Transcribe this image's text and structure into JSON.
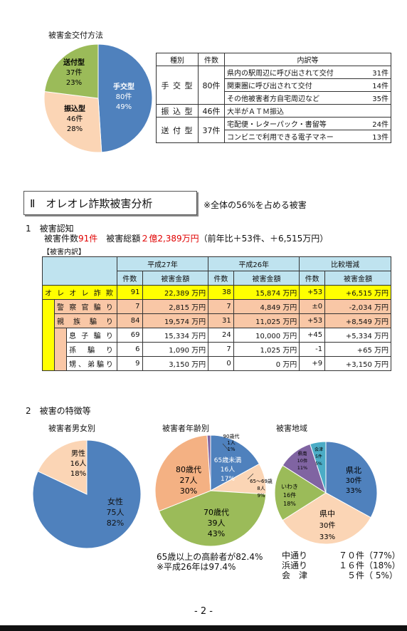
{
  "payment": {
    "title": "被害金交付方法",
    "pie": [
      {
        "name": "手交型",
        "count": "80件",
        "pct": "49%",
        "value": 49,
        "color": "#4f81bd"
      },
      {
        "name": "振込型",
        "count": "46件",
        "pct": "28%",
        "value": 28,
        "color": "#fbd5b5"
      },
      {
        "name": "送付型",
        "count": "37件",
        "pct": "23%",
        "value": 23,
        "color": "#9bbb59"
      }
    ],
    "table": {
      "headers": [
        "種別",
        "件数",
        "内訳等"
      ],
      "rows": [
        {
          "type": "手 交 型",
          "count": "80件",
          "details": [
            {
              "text": "県内の駅周辺に呼び出されて交付",
              "num": "31件"
            },
            {
              "text": "関東圏に呼び出されて交付",
              "num": "14件"
            },
            {
              "text": "その他被害者方自宅周辺など",
              "num": "35件"
            }
          ]
        },
        {
          "type": "振 込 型",
          "count": "46件",
          "details": [
            {
              "text": "大半がＡＴＭ振込",
              "num": ""
            }
          ]
        },
        {
          "type": "送 付 型",
          "count": "37件",
          "details": [
            {
              "text": "宅配便・レターパック・書留等",
              "num": "24件"
            },
            {
              "text": "コンビニで利用できる電子マネー",
              "num": "13件"
            }
          ]
        }
      ]
    }
  },
  "section2": {
    "title": "Ⅱ　オレオレ詐欺被害分析",
    "note": "※全体の56%を占める被害",
    "sub1": "1　被害認知",
    "summary_prefix": "被害件数",
    "summary_count": "91件",
    "summary_mid": "　被害総額",
    "summary_amount": "２億2,389万円",
    "summary_suffix": "（前年比＋53件、＋6,515万円）",
    "breakdown_label": "【被害内訳】",
    "table": {
      "years": [
        "平成27年",
        "平成26年",
        "比較増減"
      ],
      "cols": [
        "件数",
        "被害金額",
        "件数",
        "被害金額",
        "件数",
        "被害金額"
      ],
      "rows": [
        {
          "label": "オ レ オ レ 詐 欺",
          "c27": "91",
          "a27": "22,389 万円",
          "c26": "38",
          "a26": "15,874 万円",
          "dc": "+53",
          "da": "+6,515 万円"
        },
        {
          "label": "警 察 官 騙 り",
          "c27": "7",
          "a27": "2,815 万円",
          "c26": "7",
          "a26": "4,849 万円",
          "dc": "±0",
          "da": "-2,034 万円"
        },
        {
          "label": "親 族 騙 り",
          "c27": "84",
          "a27": "19,574 万円",
          "c26": "31",
          "a26": "11,025 万円",
          "dc": "+53",
          "da": "+8,549 万円"
        },
        {
          "label": "息 子 騙 り",
          "c27": "69",
          "a27": "15,334 万円",
          "c26": "24",
          "a26": "10,000 万円",
          "dc": "+45",
          "da": "+5,334 万円"
        },
        {
          "label": "孫 騙 り",
          "c27": "6",
          "a27": "1,090 万円",
          "c26": "7",
          "a26": "1,025 万円",
          "dc": "-1",
          "da": "+65 万円"
        },
        {
          "label": "甥、弟騙り",
          "c27": "9",
          "a27": "3,150 万円",
          "c26": "0",
          "a26": "0 万円",
          "dc": "+9",
          "da": "+3,150 万円"
        }
      ]
    }
  },
  "section3": {
    "title": "2　被害の特徴等",
    "gender": {
      "title": "被害者男女別",
      "pie": [
        {
          "name": "女性",
          "count": "75人",
          "pct": "82%",
          "value": 82,
          "color": "#4f81bd"
        },
        {
          "name": "男性",
          "count": "16人",
          "pct": "18%",
          "value": 18,
          "color": "#fbd5b5"
        }
      ]
    },
    "age": {
      "title": "被害者年齢別",
      "pie": [
        {
          "name": "65歳未満",
          "count": "16人",
          "pct": "17%",
          "value": 17,
          "color": "#4f81bd"
        },
        {
          "name": "65～69歳",
          "count": "8人",
          "pct": "9%",
          "value": 9,
          "color": "#fbd5b5"
        },
        {
          "name": "70歳代",
          "count": "39人",
          "pct": "43%",
          "value": 43,
          "color": "#9bbb59"
        },
        {
          "name": "80歳代",
          "count": "27人",
          "pct": "30%",
          "value": 30,
          "color": "#f4b183"
        },
        {
          "name": "90歳代",
          "count": "1人",
          "pct": "1%",
          "value": 1,
          "color": "#8064a2"
        }
      ],
      "note1": "65歳以上の高齢者が82.4%",
      "note2": "※平成26年は97.4%"
    },
    "region": {
      "title": "被害地域",
      "pie": [
        {
          "name": "県北",
          "count": "30件",
          "pct": "33%",
          "value": 33,
          "color": "#4f81bd"
        },
        {
          "name": "県中",
          "count": "30件",
          "pct": "33%",
          "value": 33,
          "color": "#fbd5b5"
        },
        {
          "name": "いわき",
          "count": "16件",
          "pct": "18%",
          "value": 18,
          "color": "#9bbb59"
        },
        {
          "name": "県南",
          "count": "10件",
          "pct": "11%",
          "value": 11,
          "color": "#8064a2"
        },
        {
          "name": "会津",
          "count": "5件",
          "pct": "5%",
          "value": 5,
          "color": "#4bacc6"
        }
      ],
      "summary": [
        {
          "area": "中通り",
          "count": "７０件",
          "pct": "（77%）"
        },
        {
          "area": "浜通り",
          "count": "１６件",
          "pct": "（18%）"
        },
        {
          "area": "会　津",
          "count": "５件",
          "pct": "（ 5%）"
        }
      ]
    }
  },
  "footer": {
    "page": "- 2 -"
  }
}
